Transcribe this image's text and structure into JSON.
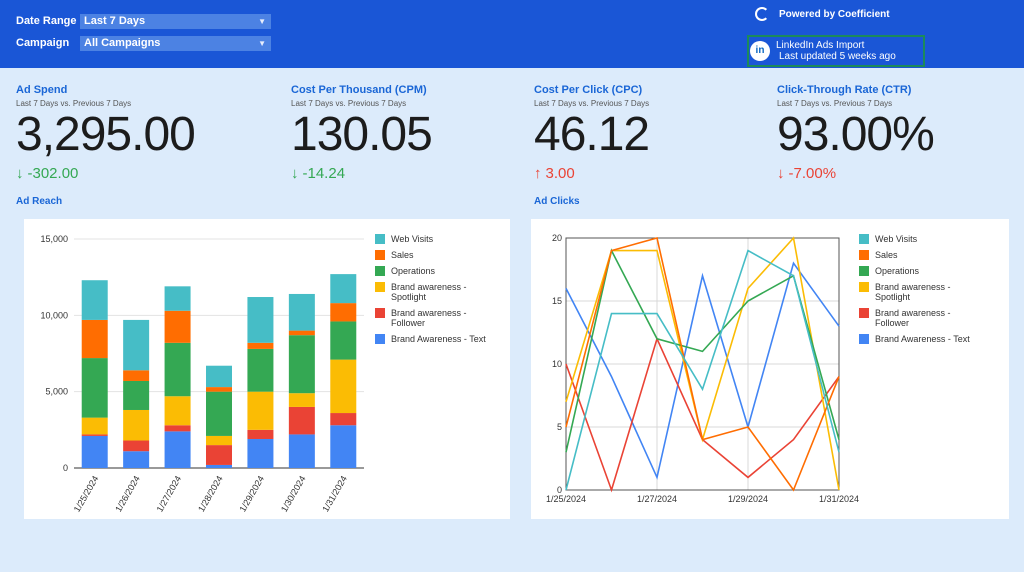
{
  "filters": {
    "date_range_label": "Date Range",
    "date_range_value": "Last 7 Days",
    "campaign_label": "Campaign",
    "campaign_value": "All Campaigns"
  },
  "header": {
    "powered_by": "Powered by Coefficient",
    "import_title": "LinkedIn Ads Import",
    "import_updated": "Last updated 5 weeks ago"
  },
  "kpis": [
    {
      "title": "Ad Spend",
      "subtitle": "Last 7 Days vs. Previous 7 Days",
      "value": "3,295.00",
      "delta": "-302.00",
      "arrow": "↓",
      "delta_color": "#34a853"
    },
    {
      "title": "Cost Per Thousand (CPM)",
      "subtitle": "Last 7 Days vs. Previous 7 Days",
      "value": "130.05",
      "delta": "-14.24",
      "arrow": "↓",
      "delta_color": "#34a853"
    },
    {
      "title": "Cost Per Click (CPC)",
      "subtitle": "Last 7 Days vs. Previous 7 Days",
      "value": "46.12",
      "delta": "3.00",
      "arrow": "↑",
      "delta_color": "#ea4335"
    },
    {
      "title": "Click-Through Rate (CTR)",
      "subtitle": "Last 7 Days vs. Previous 7 Days",
      "value": "93.00%",
      "delta": "-7.00%",
      "arrow": "↓",
      "delta_color": "#ea4335"
    }
  ],
  "sections": {
    "reach_title": "Ad Reach",
    "clicks_title": "Ad Clicks"
  },
  "colors": {
    "brand_blue": "#1a56d6",
    "background": "#dcebfb",
    "positive": "#34a853",
    "negative": "#ea4335"
  },
  "chart_data": [
    {
      "type": "bar",
      "stacked": true,
      "categories": [
        "1/25/2024",
        "1/26/2024",
        "1/27/2024",
        "1/28/2024",
        "1/29/2024",
        "1/30/2024",
        "1/31/2024"
      ],
      "yticks": [
        "0",
        "5,000",
        "10,000",
        "15,000"
      ],
      "ylim": [
        0,
        15000
      ],
      "legend_position": "right",
      "series": [
        {
          "name": "Brand Awareness - Text",
          "color": "#4285f4",
          "values": [
            2100,
            1100,
            2400,
            200,
            1900,
            2200,
            2800
          ]
        },
        {
          "name": "Brand awareness - Follower",
          "color": "#ea4335",
          "values": [
            100,
            700,
            400,
            1300,
            600,
            1800,
            800
          ]
        },
        {
          "name": "Brand awareness - Spotlight",
          "color": "#fbbc04",
          "values": [
            1100,
            2000,
            1900,
            600,
            2500,
            900,
            3500
          ]
        },
        {
          "name": "Operations",
          "color": "#34a853",
          "values": [
            3900,
            1900,
            3500,
            2900,
            2800,
            3800,
            2500
          ]
        },
        {
          "name": "Sales",
          "color": "#ff6d01",
          "values": [
            2500,
            700,
            2100,
            300,
            400,
            300,
            1200
          ]
        },
        {
          "name": "Web Visits",
          "color": "#46bdc6",
          "values": [
            2600,
            3300,
            1600,
            1400,
            3000,
            2400,
            1900
          ]
        }
      ]
    },
    {
      "type": "line",
      "x": [
        "1/25/2024",
        "1/26/2024",
        "1/27/2024",
        "1/28/2024",
        "1/29/2024",
        "1/30/2024",
        "1/31/2024"
      ],
      "xticks": [
        "1/25/2024",
        "1/27/2024",
        "1/29/2024",
        "1/31/2024"
      ],
      "yticks": [
        "0",
        "5",
        "10",
        "15",
        "20"
      ],
      "ylim": [
        0,
        20
      ],
      "grid": true,
      "legend_position": "right",
      "series": [
        {
          "name": "Brand Awareness - Text",
          "color": "#4285f4",
          "values": [
            16,
            9,
            1,
            17,
            5,
            18,
            13
          ]
        },
        {
          "name": "Brand awareness - Follower",
          "color": "#ea4335",
          "values": [
            10,
            0,
            12,
            4,
            1,
            4,
            9
          ]
        },
        {
          "name": "Brand awareness - Spotlight",
          "color": "#fbbc04",
          "values": [
            7,
            19,
            19,
            4,
            16,
            20,
            0
          ]
        },
        {
          "name": "Operations",
          "color": "#34a853",
          "values": [
            3,
            19,
            12,
            11,
            15,
            17,
            4
          ]
        },
        {
          "name": "Sales",
          "color": "#ff6d01",
          "values": [
            5,
            19,
            20,
            4,
            5,
            0,
            9
          ]
        },
        {
          "name": "Web Visits",
          "color": "#46bdc6",
          "values": [
            0,
            14,
            14,
            8,
            19,
            17,
            3
          ]
        }
      ]
    }
  ]
}
